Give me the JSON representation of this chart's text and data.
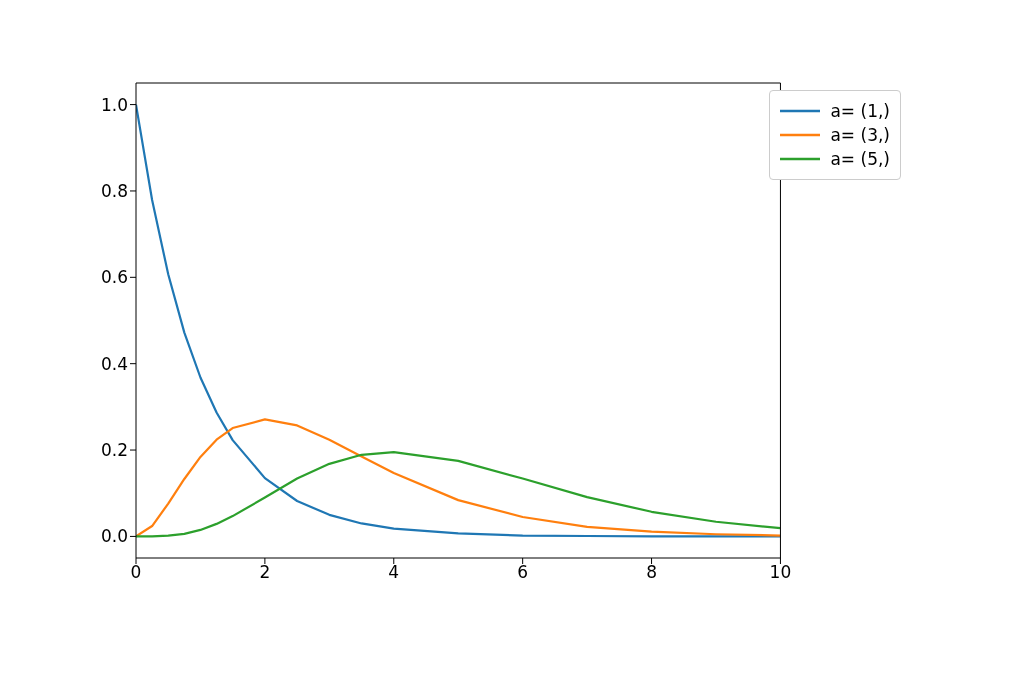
{
  "chart_data": {
    "type": "line",
    "x": [
      0,
      0.25,
      0.5,
      0.75,
      1,
      1.25,
      1.5,
      2,
      2.5,
      3,
      3.5,
      4,
      5,
      6,
      7,
      8,
      9,
      10
    ],
    "series": [
      {
        "name": "a= (1,)",
        "color": "#1f77b4",
        "values": [
          1,
          0.779,
          0.607,
          0.472,
          0.368,
          0.287,
          0.223,
          0.135,
          0.082,
          0.05,
          0.03,
          0.018,
          0.007,
          0.002,
          0.001,
          0,
          0,
          0
        ]
      },
      {
        "name": "a= (3,)",
        "color": "#ff7f0e",
        "values": [
          0,
          0.024,
          0.076,
          0.133,
          0.184,
          0.224,
          0.251,
          0.271,
          0.257,
          0.224,
          0.185,
          0.147,
          0.084,
          0.045,
          0.022,
          0.011,
          0.005,
          0.002
        ]
      },
      {
        "name": "a= (5,)",
        "color": "#2ca02c",
        "values": [
          0,
          0,
          0.002,
          0.006,
          0.015,
          0.029,
          0.047,
          0.09,
          0.134,
          0.168,
          0.189,
          0.195,
          0.175,
          0.134,
          0.091,
          0.057,
          0.034,
          0.019
        ]
      }
    ],
    "xlim": [
      0,
      10
    ],
    "xticks": [
      0,
      2,
      4,
      6,
      8,
      10
    ],
    "ylim": [
      -0.05,
      1.05
    ],
    "yticks": [
      {
        "value": 0,
        "label": "0.0"
      },
      {
        "value": 0.2,
        "label": "0.2"
      },
      {
        "value": 0.4,
        "label": "0.4"
      },
      {
        "value": 0.6,
        "label": "0.6"
      },
      {
        "value": 0.8,
        "label": "0.8"
      },
      {
        "value": 1,
        "label": "1.0"
      }
    ],
    "legend": "top right",
    "marker": "none",
    "line_style": "solid"
  }
}
